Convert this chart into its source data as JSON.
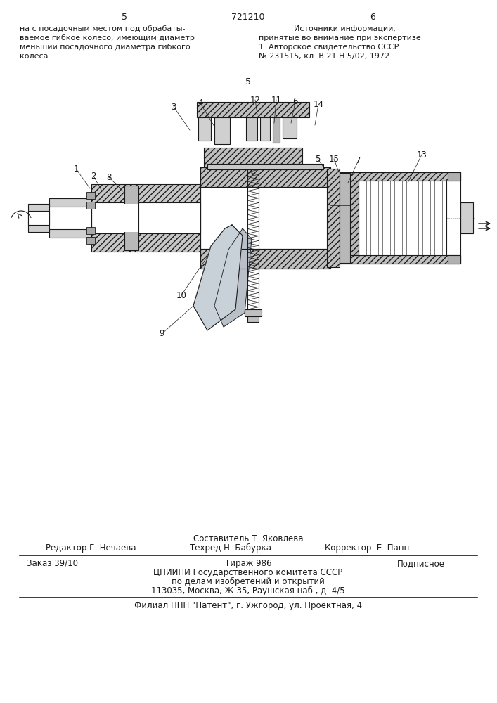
{
  "bg_color": "#ffffff",
  "page_number_left": "5",
  "page_number_center": "721210",
  "page_number_right": "6",
  "left_text_lines": [
    "на с посадочным местом под обрабаты-",
    "ваемое гибкое колесо, имеющим диаметр",
    "меньший посадочного диаметра гибкого",
    "колеса."
  ],
  "right_text_lines": [
    "Источники информации,",
    "принятые во внимание при экспертизе",
    "1. Авторское свидетельство СССР",
    "№ 231515, кл. В 21 Н 5/02, 1972."
  ],
  "center_number": "5",
  "footer_line1_center": "Составитель Т. Яковлева",
  "footer_line2_left": "Редактор Г. Нечаева",
  "footer_line2_center": "Техред Н. Бабурка",
  "footer_line2_right": "Корректор  Е. Папп",
  "footer_box_col1": "Заказ 39/10",
  "footer_box_col2": "Тираж 986",
  "footer_box_col3": "Подписное",
  "footer_box_line2": "ЦНИИПИ Государственного комитета СССР",
  "footer_box_line3": "по делам изобретений и открытий",
  "footer_box_line4": "113035, Москва, Ж-35, Раушская наб., д. 4/5",
  "footer_last_line": "Филиал ППП \"Патент\", г. Ужгород, ул. Проектная, 4",
  "hatch_color": "#555555",
  "line_color": "#1a1a1a"
}
